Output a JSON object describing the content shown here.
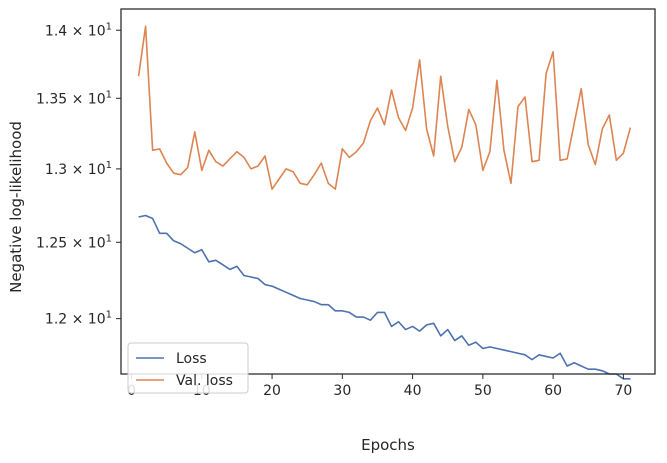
{
  "chart_data": {
    "type": "line",
    "xlabel": "Epochs",
    "ylabel": "Negative log-likelihood",
    "xlim": [
      -1.5,
      74.5
    ],
    "ylim": [
      11.65,
      14.16
    ],
    "y_scale": "log",
    "x_ticks": [
      0,
      10,
      20,
      30,
      40,
      50,
      60,
      70
    ],
    "x_tick_labels": [
      "0",
      "10",
      "20",
      "30",
      "40",
      "50",
      "60",
      "70"
    ],
    "y_ticks": [
      12.0,
      12.5,
      13.0,
      13.5,
      14.0
    ],
    "y_tick_labels": [
      {
        "mantissa": "1.2",
        "sep": " × 10",
        "exp": "1"
      },
      {
        "mantissa": "1.25",
        "sep": " × 10",
        "exp": "1"
      },
      {
        "mantissa": "1.3",
        "sep": " × 10",
        "exp": "1"
      },
      {
        "mantissa": "1.35",
        "sep": " × 10",
        "exp": "1"
      },
      {
        "mantissa": "1.4",
        "sep": " × 10",
        "exp": "1"
      }
    ],
    "grid": false,
    "legend_position": "lower-left",
    "x": [
      1,
      2,
      3,
      4,
      5,
      6,
      7,
      8,
      9,
      10,
      11,
      12,
      13,
      14,
      15,
      16,
      17,
      18,
      19,
      20,
      21,
      22,
      23,
      24,
      25,
      26,
      27,
      28,
      29,
      30,
      31,
      32,
      33,
      34,
      35,
      36,
      37,
      38,
      39,
      40,
      41,
      42,
      43,
      44,
      45,
      46,
      47,
      48,
      49,
      50,
      51,
      52,
      53,
      54,
      55,
      56,
      57,
      58,
      59,
      60,
      61,
      62,
      63,
      64,
      65,
      66,
      67,
      68,
      69,
      70,
      71
    ],
    "series": [
      {
        "name": "Loss",
        "color": "#4c72b0",
        "values": [
          12.67,
          12.68,
          12.66,
          12.56,
          12.56,
          12.51,
          12.49,
          12.46,
          12.43,
          12.45,
          12.37,
          12.38,
          12.35,
          12.32,
          12.34,
          12.28,
          12.27,
          12.26,
          12.22,
          12.21,
          12.19,
          12.17,
          12.15,
          12.13,
          12.12,
          12.11,
          12.09,
          12.09,
          12.05,
          12.05,
          12.04,
          12.01,
          12.01,
          11.99,
          12.04,
          12.04,
          11.95,
          11.98,
          11.93,
          11.95,
          11.92,
          11.96,
          11.97,
          11.89,
          11.93,
          11.86,
          11.89,
          11.83,
          11.85,
          11.81,
          11.82,
          11.81,
          11.8,
          11.79,
          11.78,
          11.77,
          11.74,
          11.77,
          11.76,
          11.75,
          11.78,
          11.7,
          11.72,
          11.7,
          11.68,
          11.68,
          11.67,
          11.65,
          11.65,
          11.62,
          11.62
        ]
      },
      {
        "name": "Val. loss",
        "color": "#dd8452",
        "values": [
          13.66,
          14.03,
          13.13,
          13.14,
          13.04,
          12.97,
          12.96,
          13.01,
          13.26,
          12.99,
          13.13,
          13.05,
          13.02,
          13.07,
          13.12,
          13.08,
          13.0,
          13.02,
          13.09,
          12.86,
          12.93,
          13.0,
          12.98,
          12.9,
          12.89,
          12.96,
          13.04,
          12.9,
          12.86,
          13.14,
          13.08,
          13.12,
          13.18,
          13.34,
          13.43,
          13.31,
          13.56,
          13.36,
          13.27,
          13.43,
          13.78,
          13.28,
          13.09,
          13.66,
          13.3,
          13.05,
          13.15,
          13.42,
          13.31,
          12.99,
          13.12,
          13.63,
          13.13,
          12.9,
          13.44,
          13.51,
          13.05,
          13.06,
          13.68,
          13.84,
          13.06,
          13.07,
          13.32,
          13.57,
          13.17,
          13.03,
          13.28,
          13.38,
          13.06,
          13.11,
          13.29
        ]
      }
    ]
  }
}
